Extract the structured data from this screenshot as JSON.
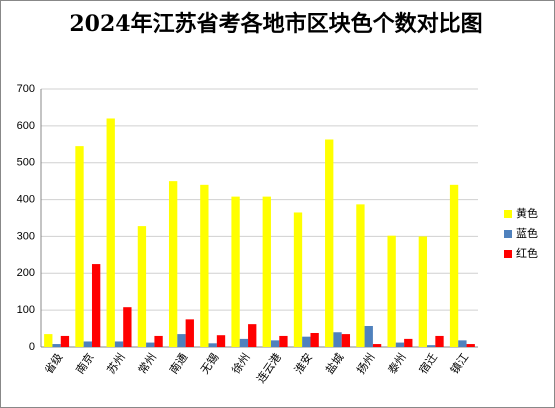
{
  "chart_data": {
    "type": "bar",
    "title": "2024年江苏省考各地市区块色个数对比图",
    "categories": [
      "省级",
      "南京",
      "苏州",
      "常州",
      "南通",
      "无锡",
      "徐州",
      "连云港",
      "淮安",
      "盐城",
      "扬州",
      "泰州",
      "宿迁",
      "镇江"
    ],
    "series": [
      {
        "name": "黄色",
        "color": "#ffff00",
        "values": [
          35,
          545,
          620,
          328,
          450,
          440,
          408,
          408,
          365,
          563,
          387,
          302,
          300,
          440
        ]
      },
      {
        "name": "蓝色",
        "color": "#4f81bd",
        "values": [
          8,
          15,
          15,
          12,
          35,
          10,
          22,
          18,
          28,
          40,
          57,
          12,
          5,
          18
        ]
      },
      {
        "name": "红色",
        "color": "#ff0000",
        "values": [
          30,
          225,
          108,
          30,
          75,
          32,
          62,
          30,
          38,
          35,
          8,
          22,
          30,
          8
        ]
      }
    ],
    "ylim": [
      0,
      700
    ],
    "yticks": [
      0,
      100,
      200,
      300,
      400,
      500,
      600,
      700
    ],
    "grid": true,
    "legend": "right"
  }
}
